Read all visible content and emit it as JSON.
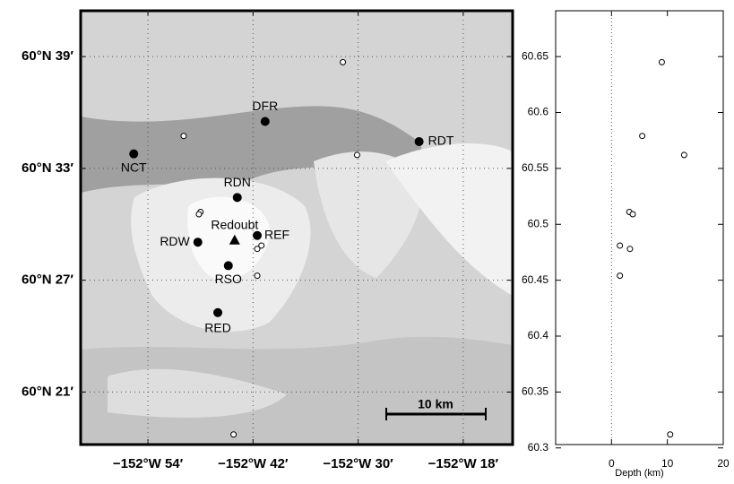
{
  "chart_data": [
    {
      "type": "map",
      "xlim": [
        -153.028,
        -152.206
      ],
      "ylim": [
        60.303,
        60.691
      ],
      "xticks": [
        {
          "value": -152.9,
          "label": "−152°W 54′"
        },
        {
          "value": -152.7,
          "label": "−152°W 42′"
        },
        {
          "value": -152.5,
          "label": "−152°W 30′"
        },
        {
          "value": -152.3,
          "label": "−152°W 18′"
        }
      ],
      "yticks": [
        {
          "value": 60.35,
          "label": "60°N 21′"
        },
        {
          "value": 60.45,
          "label": "60°N 27′"
        },
        {
          "value": 60.55,
          "label": "60°N 33′"
        },
        {
          "value": 60.65,
          "label": "60°N 39′"
        }
      ],
      "grid": true,
      "stations": [
        {
          "label": "DFR",
          "lon": -152.677,
          "lat": 60.592
        },
        {
          "label": "RDT",
          "lon": -152.384,
          "lat": 60.574
        },
        {
          "label": "NCT",
          "lon": -152.927,
          "lat": 60.563
        },
        {
          "label": "RDN",
          "lon": -152.73,
          "lat": 60.524
        },
        {
          "label": "REF",
          "lon": -152.692,
          "lat": 60.49
        },
        {
          "label": "RDW",
          "lon": -152.805,
          "lat": 60.484
        },
        {
          "label": "RSO",
          "lon": -152.747,
          "lat": 60.463
        },
        {
          "label": "RED",
          "lon": -152.767,
          "lat": 60.421
        }
      ],
      "volcano": {
        "label": "Redoubt",
        "lon": -152.735,
        "lat": 60.486
      },
      "events": {
        "lon": [
          -152.529,
          -152.832,
          -152.502,
          -152.8,
          -152.803,
          -152.684,
          -152.692,
          -152.692,
          -152.737
        ],
        "lat": [
          60.645,
          60.579,
          60.562,
          60.511,
          60.509,
          60.481,
          60.478,
          60.454,
          60.312
        ]
      },
      "scale_bar_label": "10 km"
    },
    {
      "type": "scatter",
      "xlabel": "Depth (km)",
      "xlim": [
        -10,
        20
      ],
      "ylim": [
        60.303,
        60.691
      ],
      "xticks": [
        0,
        10,
        20
      ],
      "yticks": [
        60.3,
        60.35,
        60.4,
        60.45,
        60.5,
        60.55,
        60.6,
        60.65
      ],
      "x": [
        9,
        5.5,
        13,
        3.2,
        3.8,
        1.5,
        3.3,
        1.5,
        10.5
      ],
      "y": [
        60.645,
        60.579,
        60.562,
        60.511,
        60.509,
        60.481,
        60.478,
        60.454,
        60.312
      ]
    }
  ]
}
